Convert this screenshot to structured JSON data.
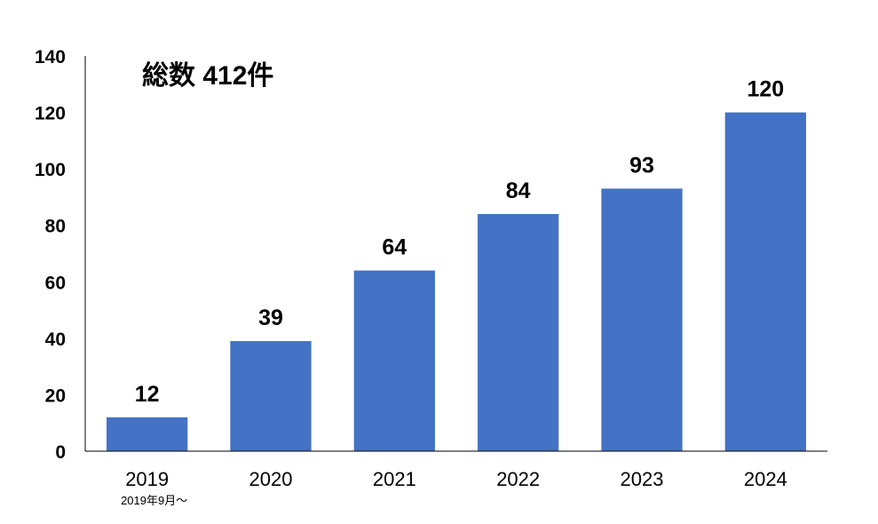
{
  "chart_data": {
    "type": "bar",
    "annotation": "総数 412件",
    "categories": [
      "2019",
      "2020",
      "2021",
      "2022",
      "2023",
      "2024"
    ],
    "category_notes": [
      "2019年9月～",
      "",
      "",
      "",
      "",
      ""
    ],
    "values": [
      12,
      39,
      64,
      84,
      93,
      120
    ],
    "data_labels": [
      "12",
      "39",
      "64",
      "84",
      "93",
      "120"
    ],
    "y_ticks": [
      "0",
      "20",
      "40",
      "60",
      "80",
      "100",
      "120",
      "140"
    ],
    "ylim": [
      0,
      140
    ],
    "grid": false,
    "legend": "none",
    "bar_color": "#4472C4"
  }
}
